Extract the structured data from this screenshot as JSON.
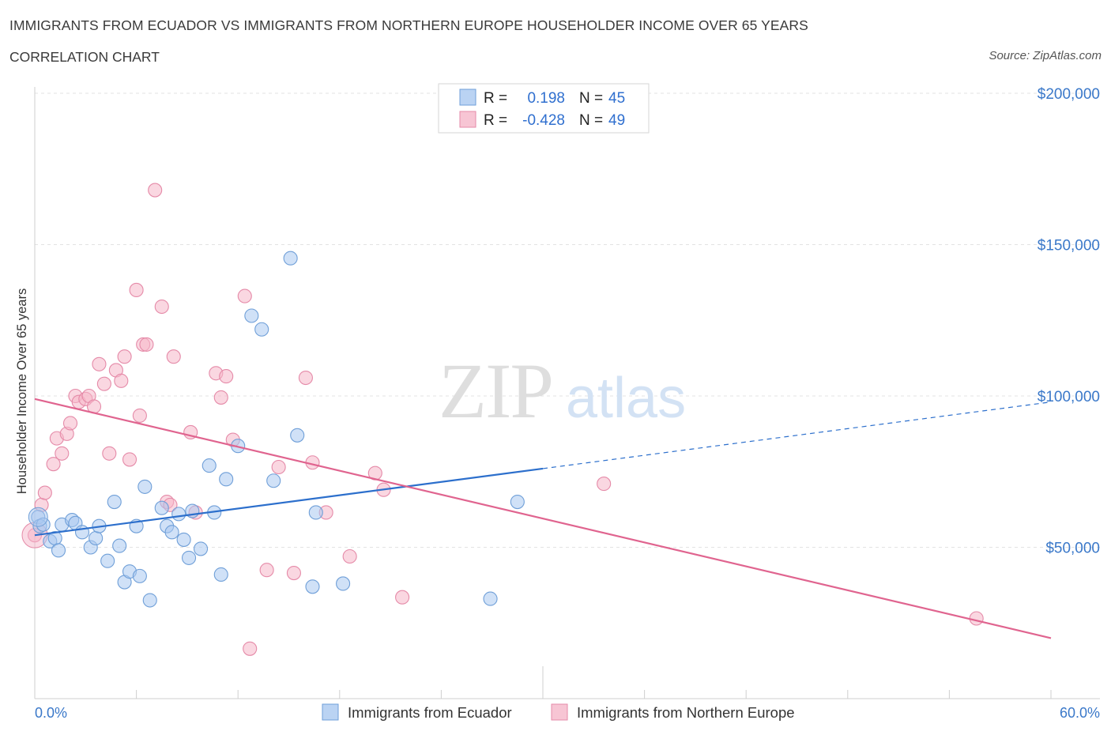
{
  "title": "IMMIGRANTS FROM ECUADOR VS IMMIGRANTS FROM NORTHERN EUROPE HOUSEHOLDER INCOME OVER 65 YEARS",
  "subtitle": "CORRELATION CHART",
  "source": "Source: ZipAtlas.com",
  "watermark": {
    "zip": "ZIP",
    "atlas": "atlas"
  },
  "legend": {
    "r_label": "R =",
    "n_label": "N =",
    "series1": {
      "r": "0.198",
      "n": "45"
    },
    "series2": {
      "r": "-0.428",
      "n": "49"
    }
  },
  "colors": {
    "blue_fill": "#a9c8f0",
    "blue_stroke": "#6f9fd8",
    "blue_line": "#2c6fcc",
    "pink_fill": "#f5b6c9",
    "pink_stroke": "#e58aa8",
    "pink_line": "#e0648f"
  },
  "chart_data": {
    "type": "scatter",
    "title": "IMMIGRANTS FROM ECUADOR VS IMMIGRANTS FROM NORTHERN EUROPE HOUSEHOLDER INCOME OVER 65 YEARS",
    "xlabel": "",
    "ylabel": "Householder Income Over 65 years",
    "xlim": [
      0,
      60
    ],
    "ylim": [
      0,
      200000
    ],
    "x_tick_labels": [
      "0.0%",
      "60.0%"
    ],
    "y_ticks": [
      50000,
      100000,
      150000,
      200000
    ],
    "y_tick_labels": [
      "$50,000",
      "$100,000",
      "$150,000",
      "$200,000"
    ],
    "grid": true,
    "series": [
      {
        "name": "Immigrants from Ecuador",
        "color": "#a9c8f0",
        "r": 0.198,
        "n": 45,
        "trend": {
          "x": [
            0,
            30
          ],
          "y": [
            54000,
            76000
          ],
          "dashed_to": [
            60,
            98000
          ]
        },
        "points": [
          [
            0.2,
            60000
          ],
          [
            0.3,
            57000
          ],
          [
            0.5,
            57500
          ],
          [
            0.9,
            52000
          ],
          [
            1.2,
            53000
          ],
          [
            1.4,
            49000
          ],
          [
            1.6,
            57500
          ],
          [
            2.2,
            59000
          ],
          [
            2.4,
            58000
          ],
          [
            2.8,
            55000
          ],
          [
            3.3,
            50000
          ],
          [
            3.6,
            53000
          ],
          [
            3.8,
            57000
          ],
          [
            4.3,
            45500
          ],
          [
            4.7,
            65000
          ],
          [
            5.0,
            50500
          ],
          [
            5.3,
            38500
          ],
          [
            5.6,
            42000
          ],
          [
            6.0,
            57000
          ],
          [
            6.2,
            40500
          ],
          [
            6.5,
            70000
          ],
          [
            6.8,
            32500
          ],
          [
            7.5,
            63000
          ],
          [
            7.8,
            57000
          ],
          [
            8.1,
            55000
          ],
          [
            8.5,
            61000
          ],
          [
            8.8,
            52500
          ],
          [
            9.1,
            46500
          ],
          [
            9.3,
            62000
          ],
          [
            9.8,
            49500
          ],
          [
            10.3,
            77000
          ],
          [
            10.6,
            61500
          ],
          [
            11.0,
            41000
          ],
          [
            11.3,
            72500
          ],
          [
            12.0,
            83500
          ],
          [
            12.8,
            126500
          ],
          [
            13.4,
            122000
          ],
          [
            14.1,
            72000
          ],
          [
            15.1,
            145500
          ],
          [
            15.5,
            87000
          ],
          [
            16.4,
            37000
          ],
          [
            16.6,
            61500
          ],
          [
            18.2,
            38000
          ],
          [
            26.9,
            33000
          ],
          [
            28.5,
            65000
          ]
        ]
      },
      {
        "name": "Immigrants from Northern Europe",
        "color": "#f5b6c9",
        "r": -0.428,
        "n": 49,
        "trend": {
          "x": [
            0,
            60
          ],
          "y": [
            99000,
            20000
          ]
        },
        "points": [
          [
            0.0,
            54000
          ],
          [
            0.4,
            64000
          ],
          [
            0.6,
            68000
          ],
          [
            1.1,
            77500
          ],
          [
            1.3,
            86000
          ],
          [
            1.6,
            81000
          ],
          [
            1.9,
            87500
          ],
          [
            2.1,
            91000
          ],
          [
            2.4,
            100000
          ],
          [
            2.6,
            98000
          ],
          [
            3.0,
            99000
          ],
          [
            3.2,
            100000
          ],
          [
            3.5,
            96500
          ],
          [
            3.8,
            110500
          ],
          [
            4.1,
            104000
          ],
          [
            4.4,
            81000
          ],
          [
            4.8,
            108500
          ],
          [
            5.1,
            105000
          ],
          [
            5.3,
            113000
          ],
          [
            5.6,
            79000
          ],
          [
            6.0,
            135000
          ],
          [
            6.2,
            93500
          ],
          [
            6.4,
            117000
          ],
          [
            6.6,
            117000
          ],
          [
            7.1,
            168000
          ],
          [
            7.5,
            129500
          ],
          [
            7.8,
            65000
          ],
          [
            8.0,
            64000
          ],
          [
            8.2,
            113000
          ],
          [
            9.2,
            88000
          ],
          [
            9.5,
            61500
          ],
          [
            10.7,
            107500
          ],
          [
            11.0,
            99500
          ],
          [
            11.3,
            106500
          ],
          [
            11.7,
            85500
          ],
          [
            12.4,
            133000
          ],
          [
            12.7,
            16500
          ],
          [
            13.7,
            42500
          ],
          [
            14.4,
            76500
          ],
          [
            15.3,
            41500
          ],
          [
            16.0,
            106000
          ],
          [
            16.4,
            78000
          ],
          [
            17.2,
            61500
          ],
          [
            18.6,
            47000
          ],
          [
            20.1,
            74500
          ],
          [
            20.6,
            69000
          ],
          [
            21.7,
            33500
          ],
          [
            33.6,
            71000
          ],
          [
            55.6,
            26500
          ]
        ]
      }
    ]
  }
}
